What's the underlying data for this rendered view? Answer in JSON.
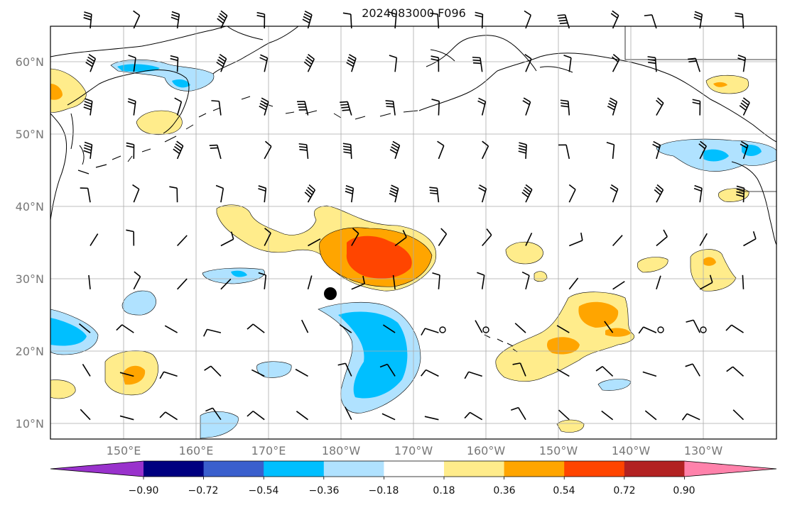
{
  "title": "2024083000 F096",
  "latitudes": [
    "60°N",
    "50°N",
    "40°N",
    "30°N",
    "20°N",
    "10°N"
  ],
  "longitudes": [
    "150°E",
    "160°E",
    "170°E",
    "180°W",
    "170°W",
    "160°W",
    "150°W",
    "140°W",
    "130°W"
  ],
  "colorbar": {
    "ticks": [
      "−0.90",
      "−0.72",
      "−0.54",
      "−0.36",
      "−0.18",
      "0.18",
      "0.36",
      "0.54",
      "0.72",
      "0.90"
    ],
    "colors": [
      "#9932cc",
      "#000080",
      "#3a5fcd",
      "#00bfff",
      "#b0e2ff",
      "#ffffff",
      "#ffec8b",
      "#ffa500",
      "#ff4500",
      "#b22222",
      "#ff82ab"
    ]
  },
  "colors": {
    "coast": "#000000",
    "grid": "#aaaaaa",
    "contour": "#000000"
  }
}
